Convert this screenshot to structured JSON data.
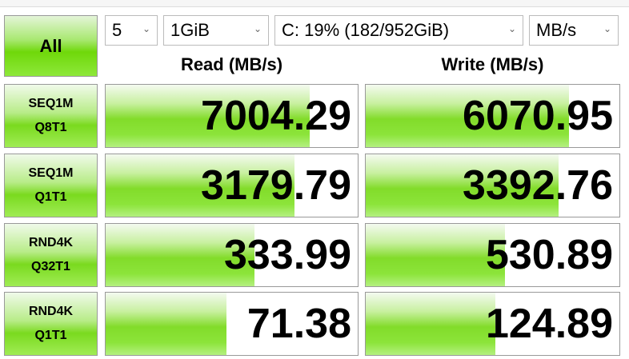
{
  "toolbar": {
    "all_label": "All",
    "count": "5",
    "size": "1GiB",
    "drive": "C: 19% (182/952GiB)",
    "unit": "MB/s"
  },
  "headers": {
    "read": "Read (MB/s)",
    "write": "Write (MB/s)"
  },
  "accent": "#7ada1e",
  "rows": [
    {
      "line1": "SEQ1M",
      "line2": "Q8T1",
      "read": "7004.29",
      "write": "6070.95",
      "read_fill": 0.81,
      "write_fill": 0.8
    },
    {
      "line1": "SEQ1M",
      "line2": "Q1T1",
      "read": "3179.79",
      "write": "3392.76",
      "read_fill": 0.75,
      "write_fill": 0.76
    },
    {
      "line1": "RND4K",
      "line2": "Q32T1",
      "read": "333.99",
      "write": "530.89",
      "read_fill": 0.59,
      "write_fill": 0.55
    },
    {
      "line1": "RND4K",
      "line2": "Q1T1",
      "read": "71.38",
      "write": "124.89",
      "read_fill": 0.48,
      "write_fill": 0.51
    }
  ]
}
